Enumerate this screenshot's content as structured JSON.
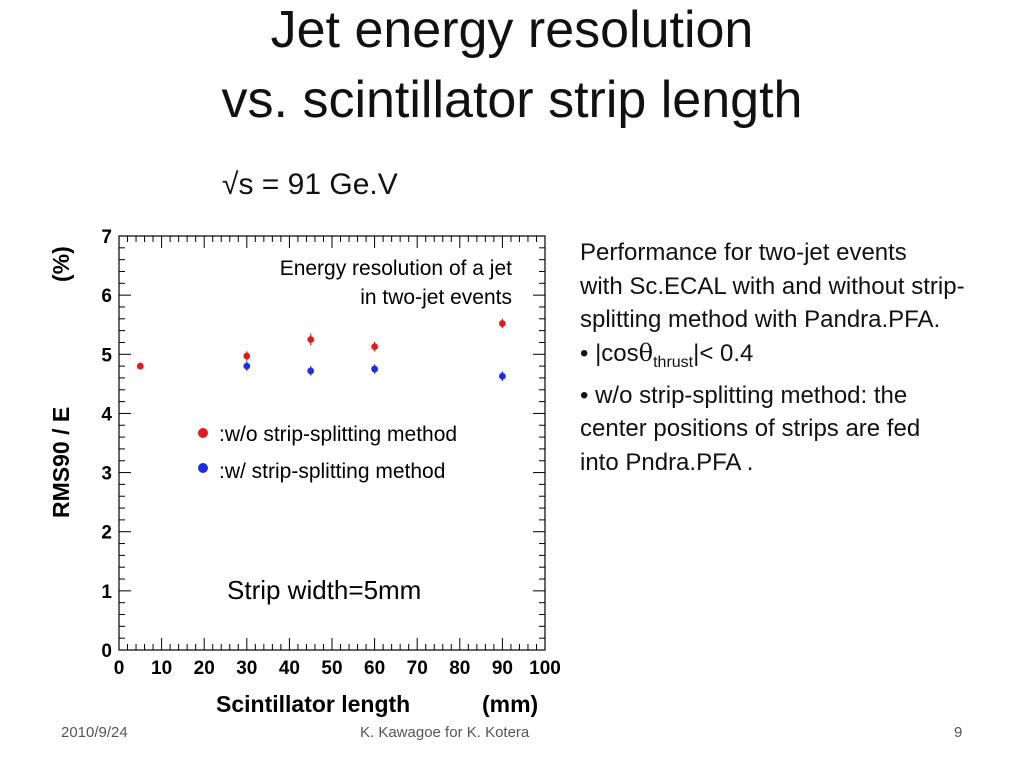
{
  "title_line1": "Jet energy resolution",
  "title_line2": "vs. scintillator strip length",
  "energy_label": "√s = 91 Ge.V",
  "side_text": {
    "line1": "Performance for two-jet events",
    "line2": "with Sc.ECAL with and without strip-",
    "line3": "splitting method with Pandra.PFA.",
    "bullet1_pre": "• |cos",
    "theta": "θ",
    "bullet1_sub": "thrust",
    "bullet1_post": "|< 0.4",
    "line5": "• w/o strip-splitting method: the",
    "line6": "center positions of strips are fed",
    "line7": "into Pndra.PFA ."
  },
  "footer": {
    "date": "2010/9/24",
    "author": "K. Kawagoe for K. Kotera",
    "page": "9"
  },
  "colors": {
    "series_red": "#e01b1b",
    "series_blue": "#1a2ee0"
  },
  "chart_data": {
    "type": "scatter",
    "title": "",
    "annotation_line1": "Energy resolution of a jet",
    "annotation_line2": "in two-jet events",
    "bottom_note": "Strip width=5mm",
    "xlabel": "Scintillator length",
    "xunit": "(mm)",
    "ylabel": "RMS90 / E",
    "yunit": "(%)",
    "xlim": [
      0,
      100
    ],
    "ylim": [
      0,
      7
    ],
    "xticks": [
      "0",
      "10",
      "20",
      "30",
      "40",
      "50",
      "60",
      "70",
      "80",
      "90",
      "100"
    ],
    "yticks": [
      "0",
      "1",
      "2",
      "3",
      "4",
      "5",
      "6",
      "7"
    ],
    "legend_placement": "center",
    "series": [
      {
        "name": ":w/o strip-splitting method",
        "color": "#e01b1b",
        "points": [
          {
            "x": 5,
            "y": 4.8,
            "err": 0.06
          },
          {
            "x": 30,
            "y": 4.97,
            "err": 0.08
          },
          {
            "x": 45,
            "y": 5.25,
            "err": 0.1
          },
          {
            "x": 60,
            "y": 5.13,
            "err": 0.08
          },
          {
            "x": 90,
            "y": 5.52,
            "err": 0.08
          }
        ]
      },
      {
        "name": ":w/ strip-splitting  method",
        "color": "#1a2ee0",
        "points": [
          {
            "x": 30,
            "y": 4.8,
            "err": 0.08
          },
          {
            "x": 45,
            "y": 4.72,
            "err": 0.08
          },
          {
            "x": 60,
            "y": 4.75,
            "err": 0.08
          },
          {
            "x": 90,
            "y": 4.63,
            "err": 0.08
          }
        ]
      }
    ]
  }
}
